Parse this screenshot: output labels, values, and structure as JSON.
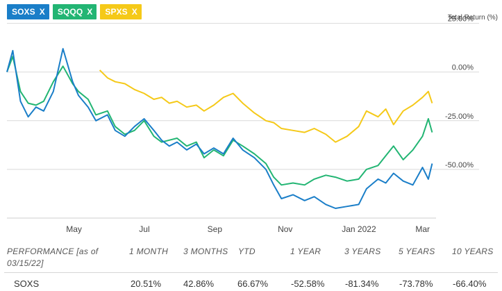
{
  "legend_chips": [
    {
      "label": "SOXS",
      "close": "X",
      "color": "#1a7ec8"
    },
    {
      "label": "SQQQ",
      "close": "X",
      "color": "#22b573"
    },
    {
      "label": "SPXS",
      "close": "X",
      "color": "#f5c918"
    }
  ],
  "y_axis_title": "Total Return (%)",
  "chart_data": {
    "type": "line",
    "ylabel": "Total Return (%)",
    "yticks": [
      "25.00%",
      "0.00%",
      "-25.00%",
      "-50.00%"
    ],
    "ylim": [
      -75,
      27
    ],
    "xticks": [
      "May",
      "Jul",
      "Sep",
      "Nov",
      "Jan 2022",
      "Mar"
    ],
    "xlim": [
      0,
      11.1
    ],
    "grid": "horizontal",
    "series": [
      {
        "name": "SOXS",
        "color": "#1a7ec8",
        "x": [
          0,
          0.15,
          0.35,
          0.55,
          0.75,
          0.95,
          1.2,
          1.45,
          1.7,
          1.85,
          2.1,
          2.3,
          2.6,
          2.8,
          3.05,
          3.3,
          3.55,
          3.8,
          4.0,
          4.2,
          4.4,
          4.65,
          4.9,
          5.1,
          5.35,
          5.6,
          5.85,
          6.1,
          6.4,
          6.7,
          6.9,
          7.1,
          7.4,
          7.7,
          7.95,
          8.25,
          8.5,
          8.8,
          9.1,
          9.3,
          9.6,
          9.8,
          10.0,
          10.25,
          10.5,
          10.75,
          10.9,
          11.0
        ],
        "y": [
          0,
          11,
          -15,
          -23,
          -18,
          -20,
          -10,
          12,
          -5,
          -12,
          -18,
          -25,
          -22,
          -30,
          -33,
          -28,
          -24,
          -30,
          -35,
          -38,
          -36,
          -40,
          -37,
          -42,
          -39,
          -42,
          -34,
          -40,
          -44,
          -50,
          -58,
          -65,
          -63,
          -66,
          -64,
          -68,
          -70,
          -69,
          -68,
          -60,
          -55,
          -57,
          -52,
          -56,
          -58,
          -49,
          -55,
          -47
        ]
      },
      {
        "name": "SQQQ",
        "color": "#22b573",
        "x": [
          0,
          0.15,
          0.35,
          0.55,
          0.75,
          0.95,
          1.2,
          1.45,
          1.7,
          1.85,
          2.1,
          2.3,
          2.6,
          2.8,
          3.05,
          3.3,
          3.55,
          3.8,
          4.0,
          4.2,
          4.4,
          4.65,
          4.9,
          5.1,
          5.35,
          5.6,
          5.85,
          6.1,
          6.4,
          6.7,
          6.9,
          7.1,
          7.4,
          7.7,
          7.95,
          8.25,
          8.5,
          8.8,
          9.1,
          9.3,
          9.6,
          9.8,
          10.0,
          10.25,
          10.5,
          10.75,
          10.9,
          11.0
        ],
        "y": [
          0,
          8,
          -10,
          -16,
          -17,
          -15,
          -5,
          3,
          -6,
          -10,
          -14,
          -22,
          -20,
          -28,
          -32,
          -30,
          -25,
          -33,
          -36,
          -35,
          -34,
          -38,
          -36,
          -44,
          -40,
          -43,
          -35,
          -38,
          -42,
          -47,
          -54,
          -58,
          -57,
          -58,
          -55,
          -53,
          -54,
          -56,
          -55,
          -50,
          -48,
          -43,
          -38,
          -45,
          -40,
          -33,
          -24,
          -31
        ]
      },
      {
        "name": "SPXS",
        "color": "#f5c918",
        "x": [
          2.4,
          2.6,
          2.8,
          3.05,
          3.3,
          3.55,
          3.8,
          4.0,
          4.2,
          4.4,
          4.65,
          4.9,
          5.1,
          5.35,
          5.6,
          5.85,
          6.1,
          6.4,
          6.7,
          6.9,
          7.1,
          7.4,
          7.7,
          7.95,
          8.25,
          8.5,
          8.8,
          9.1,
          9.3,
          9.6,
          9.8,
          10.0,
          10.25,
          10.5,
          10.75,
          10.9,
          11.0
        ],
        "y": [
          1,
          -3,
          -5,
          -6,
          -9,
          -11,
          -14,
          -13,
          -16,
          -15,
          -18,
          -17,
          -20,
          -17,
          -13,
          -11,
          -16,
          -21,
          -25,
          -26,
          -29,
          -30,
          -31,
          -29,
          -32,
          -36,
          -33,
          -28,
          -20,
          -23,
          -19,
          -27,
          -20,
          -17,
          -13,
          -10,
          -16
        ]
      }
    ]
  },
  "performance": {
    "header_label": "PERFORMANCE [as of 03/15/22]",
    "periods": [
      "1 MONTH",
      "3 MONTHS",
      "YTD",
      "1 YEAR",
      "3 YEARS",
      "5 YEARS",
      "10 YEARS"
    ],
    "rows": [
      {
        "ticker": "SOXS",
        "values": [
          "20.51%",
          "42.86%",
          "66.67%",
          "-52.58%",
          "-81.34%",
          "-73.78%",
          "-66.40%"
        ]
      }
    ]
  }
}
